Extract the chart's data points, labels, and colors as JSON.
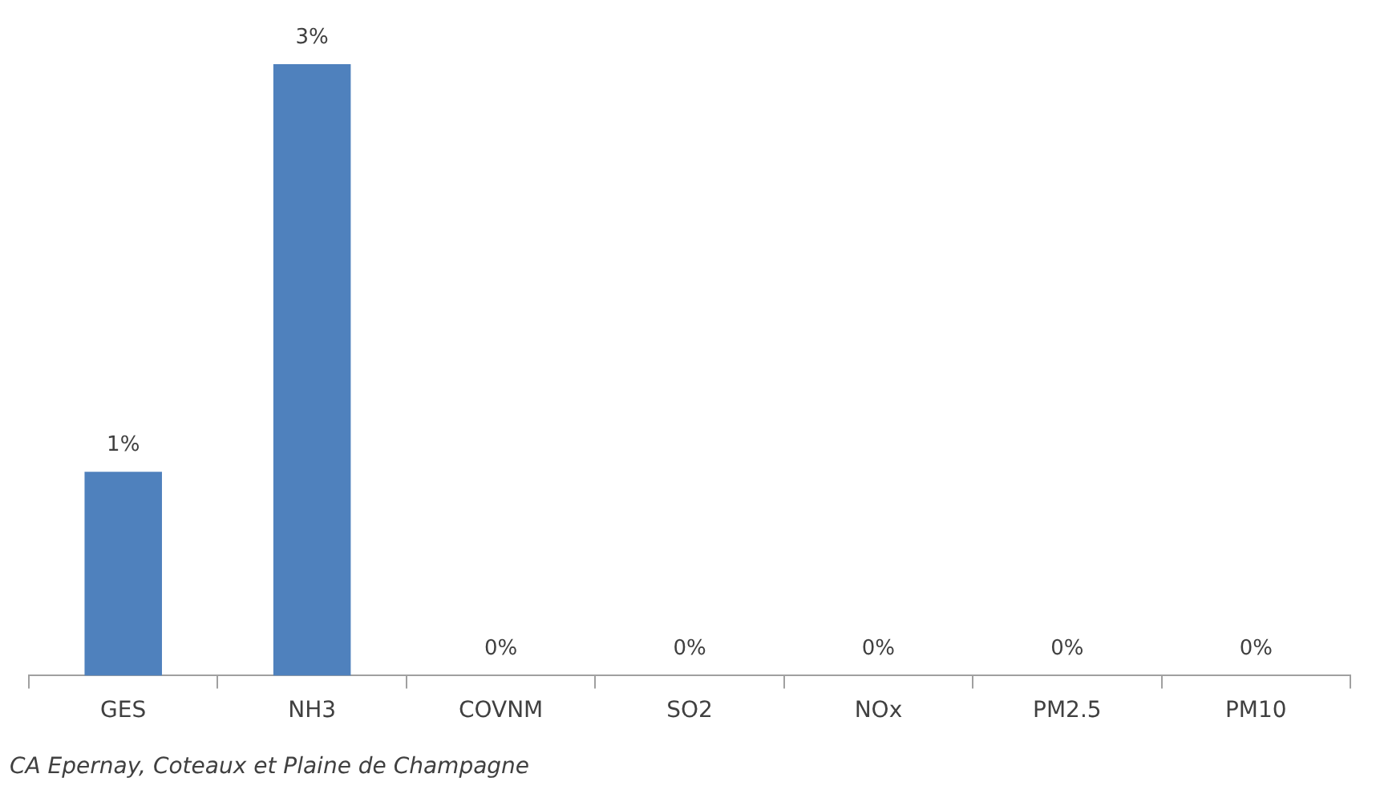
{
  "chart_data": {
    "type": "bar",
    "tick_labels": "x",
    "categories": [
      "GES",
      "NH3",
      "COVNM",
      "SO2",
      "NOx",
      "PM2.5",
      "PM10"
    ],
    "values": [
      1,
      3,
      0,
      0,
      0,
      0,
      0
    ],
    "value_labels": [
      "1%",
      "3%",
      "0%",
      "0%",
      "0%",
      "0%",
      "0%"
    ],
    "color": "#4f81bd",
    "grid": false,
    "legend": false,
    "annotations": [
      "CA Epernay, Coteaux et Plaine de Champagne"
    ]
  }
}
